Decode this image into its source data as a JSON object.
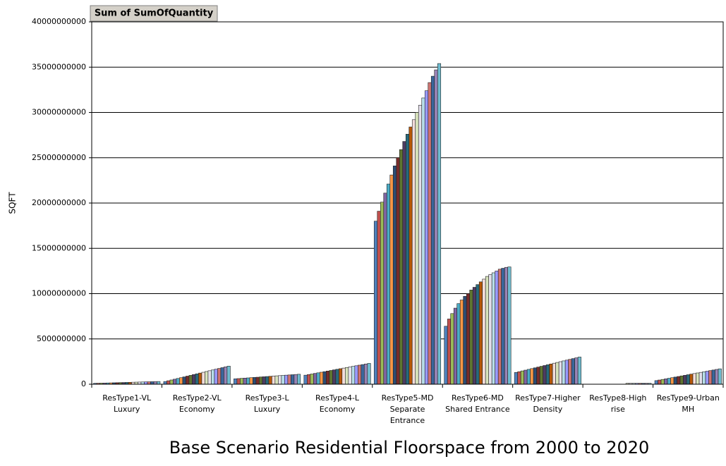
{
  "chart_data": {
    "type": "bar",
    "title": "Base Scenario Residential Floorspace from 2000 to 2020",
    "field_button": "Sum of SumOfQuantity",
    "y_label": "SQFT",
    "categories": [
      "ResType1-VL\nLuxury",
      "ResType2-VL\nEconomy",
      "ResType3-L\nLuxury",
      "ResType4-L\nEconomy",
      "ResType5-MD\nSeparate\nEntrance",
      "ResType6-MD\nShared Entrance",
      "ResType7-Higher\nDensity",
      "ResType8-High\nrise",
      "ResType9-Urban\nMH"
    ],
    "ylim": [
      0,
      40000000000
    ],
    "yticks": [
      0,
      5000000000,
      10000000000,
      15000000000,
      20000000000,
      25000000000,
      30000000000,
      35000000000,
      40000000000
    ],
    "grid": true,
    "series": [
      {
        "color": "#4f81bd",
        "values": [
          100000000,
          300000000,
          600000000,
          1000000000,
          18000000000,
          6400000000,
          1300000000,
          0,
          400000000
        ]
      },
      {
        "color": "#c0504d",
        "values": [
          110000000,
          385000000,
          625000000,
          1065000000,
          19100000000,
          7200000000,
          1385000000,
          0,
          465000000
        ]
      },
      {
        "color": "#9bbb59",
        "values": [
          120000000,
          470000000,
          650000000,
          1130000000,
          20100000000,
          7800000000,
          1470000000,
          0,
          530000000
        ]
      },
      {
        "color": "#8064a2",
        "values": [
          130000000,
          555000000,
          675000000,
          1195000000,
          21100000000,
          8400000000,
          1555000000,
          0,
          595000000
        ]
      },
      {
        "color": "#4bacc6",
        "values": [
          140000000,
          640000000,
          700000000,
          1260000000,
          22100000000,
          8900000000,
          1640000000,
          0,
          660000000
        ]
      },
      {
        "color": "#f79646",
        "values": [
          150000000,
          725000000,
          725000000,
          1325000000,
          23100000000,
          9300000000,
          1725000000,
          0,
          725000000
        ]
      },
      {
        "color": "#2c4d75",
        "values": [
          160000000,
          810000000,
          750000000,
          1390000000,
          24100000000,
          9700000000,
          1810000000,
          0,
          790000000
        ]
      },
      {
        "color": "#772c2a",
        "values": [
          170000000,
          895000000,
          775000000,
          1455000000,
          25000000000,
          10000000000,
          1895000000,
          0,
          855000000
        ]
      },
      {
        "color": "#5f7530",
        "values": [
          180000000,
          980000000,
          800000000,
          1520000000,
          25900000000,
          10400000000,
          1980000000,
          0,
          920000000
        ]
      },
      {
        "color": "#4d3b62",
        "values": [
          190000000,
          1065000000,
          825000000,
          1585000000,
          26800000000,
          10700000000,
          2065000000,
          0,
          985000000
        ]
      },
      {
        "color": "#276a7c",
        "values": [
          200000000,
          1150000000,
          850000000,
          1650000000,
          27600000000,
          11000000000,
          2150000000,
          0,
          1050000000
        ]
      },
      {
        "color": "#b65708",
        "values": [
          210000000,
          1235000000,
          875000000,
          1715000000,
          28400000000,
          11300000000,
          2235000000,
          0,
          1115000000
        ]
      },
      {
        "color": "#f2dcdb",
        "values": [
          220000000,
          1320000000,
          900000000,
          1780000000,
          29200000000,
          11600000000,
          2320000000,
          0,
          1180000000
        ]
      },
      {
        "color": "#d8e4bc",
        "values": [
          230000000,
          1405000000,
          925000000,
          1845000000,
          30000000000,
          11900000000,
          2405000000,
          100000000,
          1245000000
        ]
      },
      {
        "color": "#e4dfec",
        "values": [
          240000000,
          1490000000,
          950000000,
          1910000000,
          30800000000,
          12100000000,
          2490000000,
          100000000,
          1310000000
        ]
      },
      {
        "color": "#b7dee8",
        "values": [
          250000000,
          1575000000,
          975000000,
          1975000000,
          31600000000,
          12300000000,
          2575000000,
          100000000,
          1375000000
        ]
      },
      {
        "color": "#9999ff",
        "values": [
          260000000,
          1660000000,
          1000000000,
          2040000000,
          32400000000,
          12500000000,
          2660000000,
          100000000,
          1440000000
        ]
      },
      {
        "color": "#cd7371",
        "values": [
          270000000,
          1745000000,
          1025000000,
          2105000000,
          33300000000,
          12700000000,
          2745000000,
          100000000,
          1505000000
        ]
      },
      {
        "color": "#3a679c",
        "values": [
          280000000,
          1830000000,
          1050000000,
          2170000000,
          34000000000,
          12800000000,
          2830000000,
          100000000,
          1570000000
        ]
      },
      {
        "color": "#9983b5",
        "values": [
          290000000,
          1915000000,
          1075000000,
          2235000000,
          34700000000,
          12900000000,
          2915000000,
          100000000,
          1635000000
        ]
      },
      {
        "color": "#6fbdd1",
        "values": [
          300000000,
          2000000000,
          1100000000,
          2300000000,
          35400000000,
          12950000000,
          3000000000,
          100000000,
          1700000000
        ]
      }
    ]
  }
}
